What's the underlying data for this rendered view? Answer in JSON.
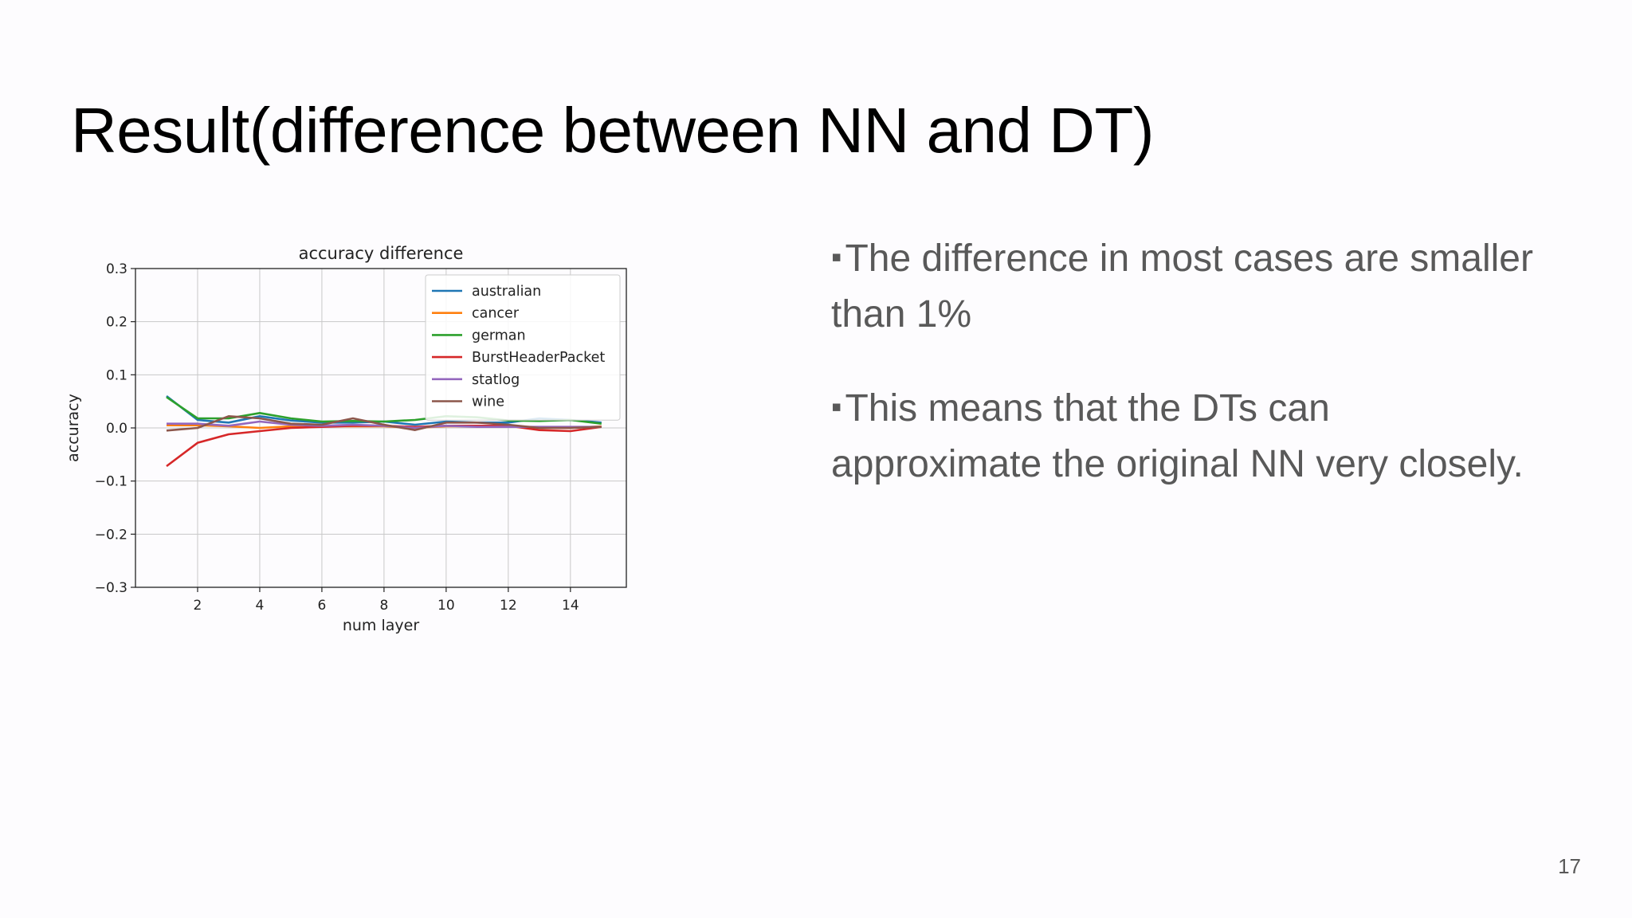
{
  "slide": {
    "title": "Result(difference between NN and DT)",
    "bullet_mark": "▪",
    "bullets": [
      "The difference in most cases are smaller than 1%",
      "This means that the DTs can approximate the original NN very closely."
    ],
    "page_number": "17"
  },
  "chart_data": {
    "type": "line",
    "title": "accuracy difference",
    "xlabel": "num layer",
    "ylabel": "accuracy",
    "xlim": [
      0,
      15.8
    ],
    "ylim": [
      -0.3,
      0.3
    ],
    "xticks": [
      2,
      4,
      6,
      8,
      10,
      12,
      14
    ],
    "yticks": [
      0.3,
      0.2,
      0.1,
      0.0,
      -0.1,
      -0.2,
      -0.3
    ],
    "ytick_labels": [
      "0.3",
      "0.2",
      "0.1",
      "0.0",
      "−0.1",
      "−0.2",
      "−0.3"
    ],
    "grid": true,
    "legend_position": "top-right",
    "x": [
      1,
      2,
      3,
      4,
      5,
      6,
      7,
      8,
      9,
      10,
      11,
      12,
      13,
      14,
      15
    ],
    "series": [
      {
        "name": "australian",
        "color": "#1f77b4",
        "values": [
          0.06,
          0.015,
          0.01,
          0.022,
          0.014,
          0.01,
          0.01,
          0.012,
          0.006,
          0.012,
          0.01,
          0.01,
          0.018,
          0.015,
          0.01
        ]
      },
      {
        "name": "cancer",
        "color": "#ff7f0e",
        "values": [
          0.005,
          0.005,
          0.003,
          0.0,
          0.003,
          0.003,
          0.003,
          0.003,
          0.0,
          0.003,
          0.003,
          0.003,
          0.0,
          0.0,
          0.003
        ]
      },
      {
        "name": "german",
        "color": "#2ca02c",
        "values": [
          0.058,
          0.018,
          0.018,
          0.028,
          0.018,
          0.012,
          0.013,
          0.012,
          0.015,
          0.022,
          0.02,
          0.014,
          0.013,
          0.015,
          0.008
        ]
      },
      {
        "name": "BurstHeaderPacket",
        "color": "#d62728",
        "values": [
          -0.072,
          -0.028,
          -0.012,
          -0.006,
          0.0,
          0.002,
          0.004,
          0.004,
          0.002,
          0.004,
          0.004,
          0.004,
          -0.004,
          -0.006,
          0.002
        ]
      },
      {
        "name": "statlog",
        "color": "#9467bd",
        "values": [
          0.008,
          0.008,
          0.004,
          0.012,
          0.006,
          0.004,
          0.006,
          0.004,
          0.0,
          0.004,
          0.002,
          0.002,
          0.002,
          0.002,
          0.002
        ]
      },
      {
        "name": "wine",
        "color": "#8c564b",
        "values": [
          -0.005,
          0.0,
          0.022,
          0.018,
          0.008,
          0.006,
          0.018,
          0.006,
          -0.004,
          0.01,
          0.01,
          0.006,
          0.0,
          0.0,
          0.002
        ]
      }
    ]
  }
}
